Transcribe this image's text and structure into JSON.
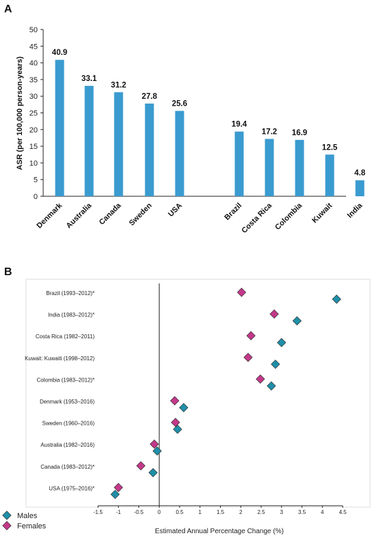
{
  "chart_data": [
    {
      "panel": "A",
      "type": "bar",
      "title": "",
      "xlabel": "",
      "ylabel": "ASR (per 100,000 person-years)",
      "ylim": [
        0,
        50
      ],
      "yticks": [
        0,
        5,
        10,
        15,
        20,
        25,
        30,
        35,
        40,
        45,
        50
      ],
      "grid": false,
      "color": "#3a9bd0",
      "groups": [
        {
          "categories": [
            "Denmark",
            "Australia",
            "Canada",
            "Sweden",
            "USA"
          ],
          "values": [
            40.9,
            33.1,
            31.2,
            27.8,
            25.6
          ],
          "value_labels": [
            "40.9",
            "33.1",
            "31.2",
            "27.8",
            "25.6"
          ]
        },
        {
          "categories": [
            "Brazil",
            "Costa Rica",
            "Colombia",
            "Kuwait",
            "India"
          ],
          "values": [
            19.4,
            17.2,
            16.9,
            12.5,
            4.8
          ],
          "value_labels": [
            "19.4",
            "17.2",
            "16.9",
            "12.5",
            "4.8"
          ]
        }
      ]
    },
    {
      "panel": "B",
      "type": "scatter",
      "title": "",
      "xlabel": "Estimated Annual Percentage Change (%)",
      "ylabel": "",
      "xlim": [
        -1.5,
        4.5
      ],
      "xticks": [
        "-1.5",
        "-1",
        "-0.5",
        "0",
        "0.5",
        "1",
        "1.5",
        "2",
        "2.5",
        "3",
        "3.5",
        "4",
        "4.5"
      ],
      "grid": false,
      "legend_position": "bottom-left",
      "categories": [
        "Brazil (1993–2012)*",
        "India (1983–2012)*",
        "Costa Rica (1982–2011)",
        "Kuwait: Kuwaiti (1998–2012)",
        "Colombia (1983–2012)*",
        "Denmark (1953–2016)",
        "Sweden (1960–2016)",
        "Australia (1982–2016)",
        "Canada (1983–2012)*",
        "USA (1975–2016)*"
      ],
      "series": [
        {
          "name": "Males",
          "color": "#1f8fa8",
          "values": [
            4.35,
            3.38,
            3.0,
            2.85,
            2.75,
            0.6,
            0.45,
            -0.05,
            -0.15,
            -1.08
          ]
        },
        {
          "name": "Females",
          "color": "#c4388a",
          "values": [
            2.02,
            2.82,
            2.25,
            2.18,
            2.48,
            0.38,
            0.4,
            -0.12,
            -0.45,
            -1.0
          ]
        }
      ]
    }
  ]
}
